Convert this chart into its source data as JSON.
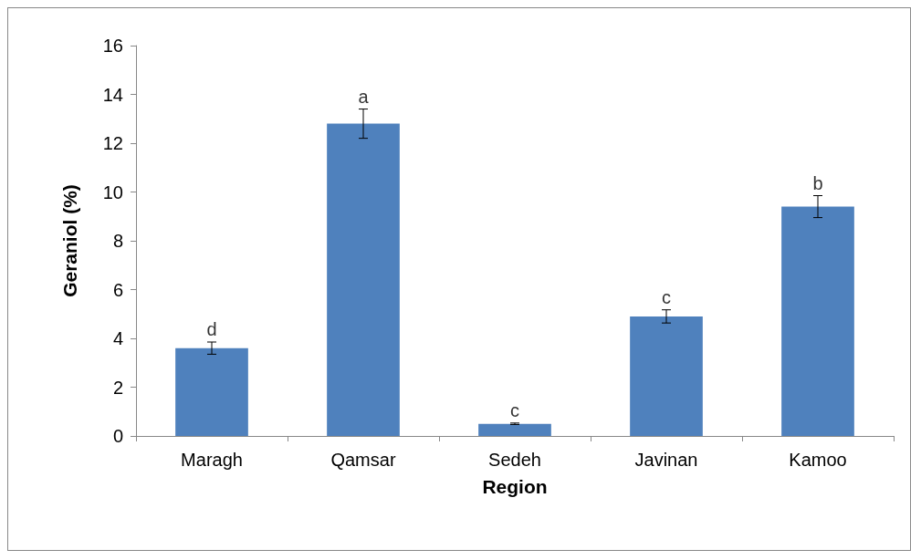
{
  "chart_data": {
    "type": "bar",
    "xlabel": "Region",
    "ylabel": "Geraniol (%)",
    "categories": [
      "Maragh",
      "Qamsar",
      "Sedeh",
      "Javinan",
      "Kamoo"
    ],
    "values": [
      3.6,
      12.8,
      0.5,
      4.9,
      9.4
    ],
    "errors": [
      0.25,
      0.6,
      0.03,
      0.27,
      0.45
    ],
    "color": "#4f81bd",
    "ylim": [
      0,
      16
    ],
    "yticks": [
      0,
      2,
      4,
      6,
      8,
      10,
      12,
      14,
      16
    ],
    "grid": false,
    "annotations": [
      {
        "text": "d",
        "x": "Maragh",
        "y": 3.85
      },
      {
        "text": "a",
        "x": "Qamsar",
        "y": 13.4
      },
      {
        "text": "c",
        "x": "Sedeh",
        "y": 0.53
      },
      {
        "text": "c",
        "x": "Javinan",
        "y": 5.17
      },
      {
        "text": "b",
        "x": "Kamoo",
        "y": 9.85
      }
    ]
  }
}
